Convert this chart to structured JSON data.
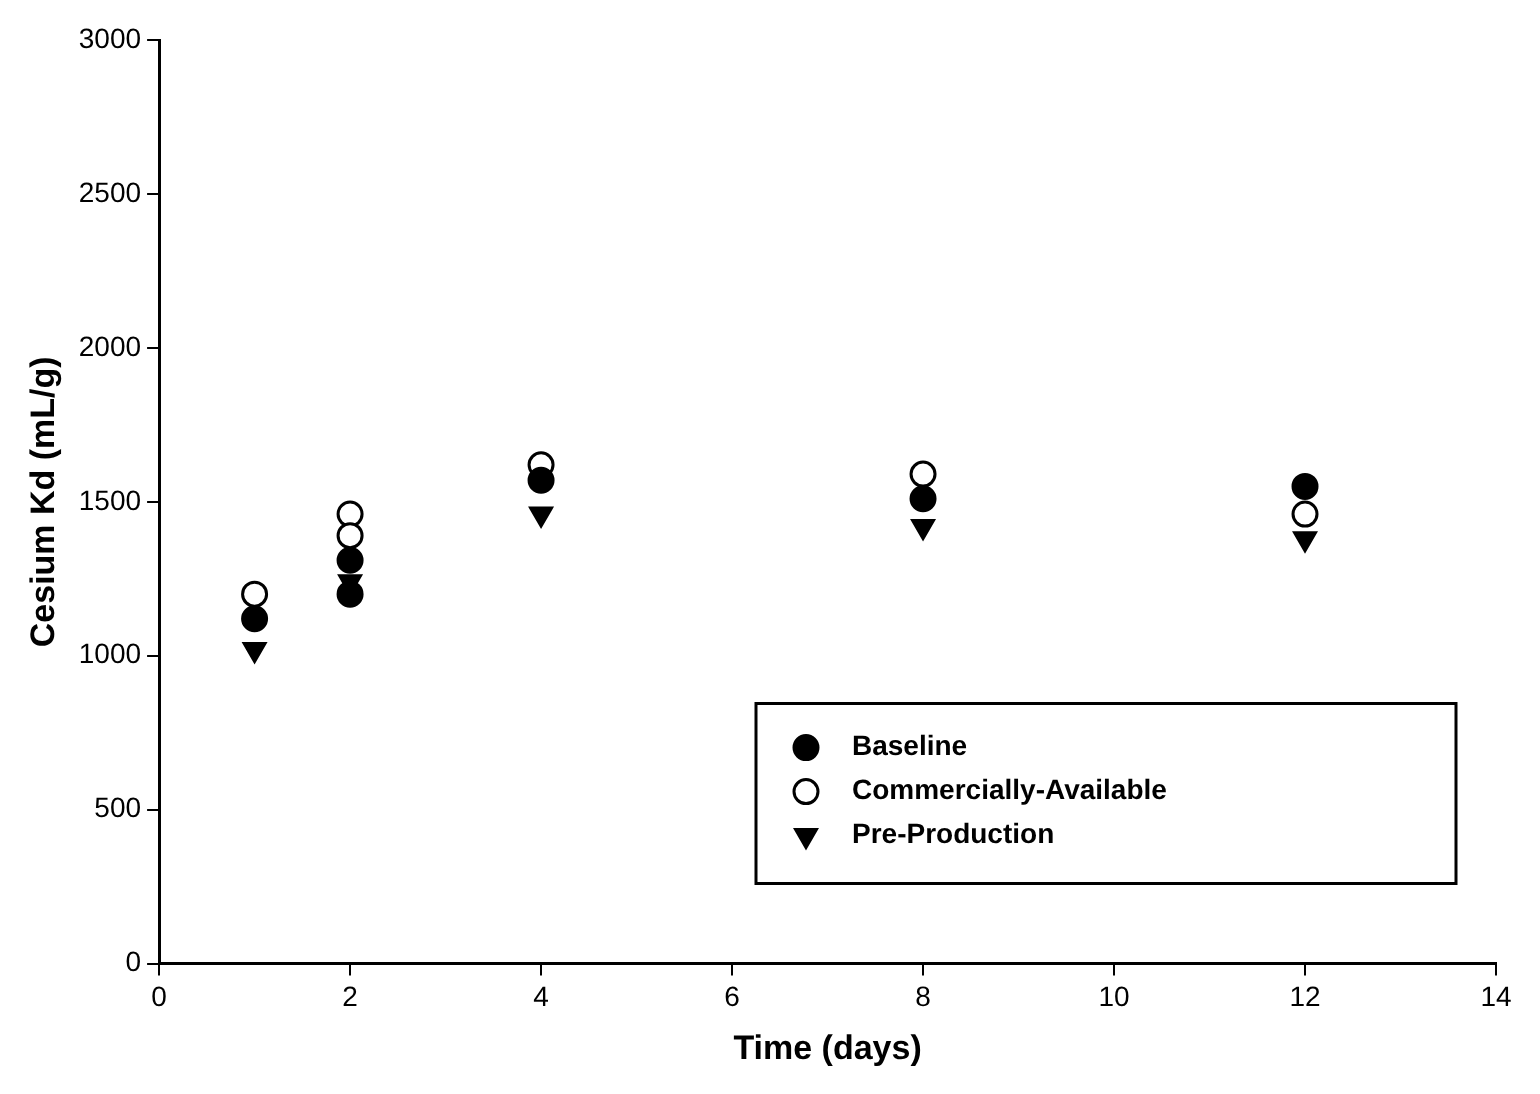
{
  "chart_data": {
    "type": "scatter",
    "xlabel": "Time (days)",
    "ylabel": "Cesium Kd (mL/g)",
    "xlim": [
      0,
      14
    ],
    "xticks": [
      0,
      2,
      4,
      6,
      8,
      10,
      12,
      14
    ],
    "ylim": [
      0,
      3000
    ],
    "yticks": [
      0,
      500,
      1000,
      1500,
      2000,
      2500,
      3000
    ],
    "grid": false,
    "legend": "bottom right",
    "series": [
      {
        "name": "Baseline",
        "color": "#000000",
        "marker": "circle",
        "x": [
          1,
          2,
          2,
          4,
          8,
          12
        ],
        "values": [
          1120,
          1310,
          1200,
          1570,
          1510,
          1550
        ]
      },
      {
        "name": "Commercially-Available",
        "color": "#ffffff",
        "marker": "circle",
        "x": [
          1,
          2,
          2,
          4,
          8,
          12
        ],
        "values": [
          1200,
          1460,
          1390,
          1620,
          1590,
          1460
        ]
      },
      {
        "name": "Pre-Production",
        "color": "#000000",
        "marker": "triangle",
        "x": [
          1,
          2,
          4,
          8,
          12
        ],
        "values": [
          1020,
          1240,
          1460,
          1420,
          1380
        ]
      }
    ]
  }
}
